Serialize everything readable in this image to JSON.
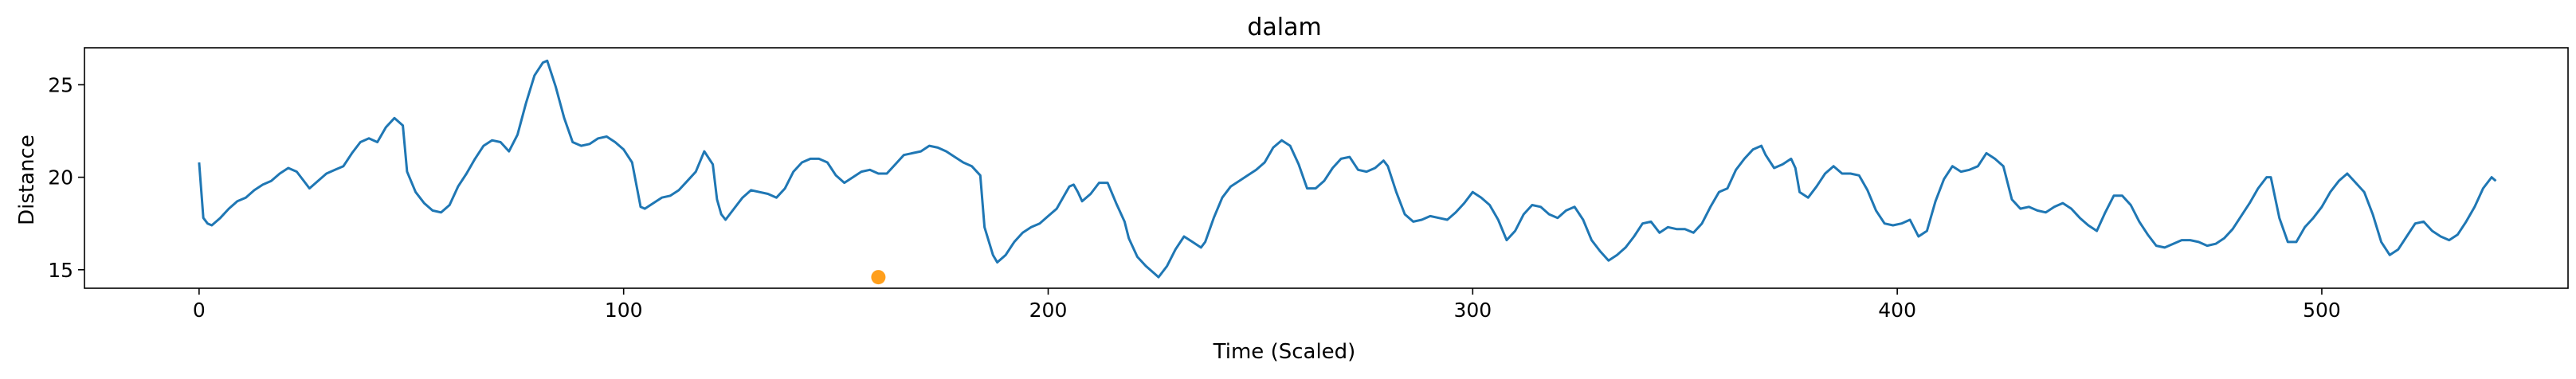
{
  "chart_data": {
    "type": "scatter",
    "title": "dalam",
    "xlabel": "Time (Scaled)",
    "ylabel": "Distance",
    "xlim": [
      -27,
      558
    ],
    "ylim": [
      14.0,
      27.0
    ],
    "xticks": [
      0,
      100,
      200,
      300,
      400,
      500
    ],
    "yticks": [
      15,
      20,
      25
    ],
    "grid": false,
    "colors": {
      "line": "#1f77b4",
      "marker": "#ff9f1c",
      "axes": "#000000"
    },
    "series": [
      {
        "kind": "line",
        "points": [
          [
            0,
            20.8
          ],
          [
            1,
            17.8
          ],
          [
            2,
            17.5
          ],
          [
            3,
            17.4
          ],
          [
            5,
            17.8
          ],
          [
            7,
            18.3
          ],
          [
            9,
            18.7
          ],
          [
            11,
            18.9
          ],
          [
            13,
            19.3
          ],
          [
            15,
            19.6
          ],
          [
            17,
            19.8
          ],
          [
            19,
            20.2
          ],
          [
            21,
            20.5
          ],
          [
            23,
            20.3
          ],
          [
            25,
            19.7
          ],
          [
            26,
            19.4
          ],
          [
            28,
            19.8
          ],
          [
            30,
            20.2
          ],
          [
            32,
            20.4
          ],
          [
            34,
            20.6
          ],
          [
            36,
            21.3
          ],
          [
            38,
            21.9
          ],
          [
            40,
            22.1
          ],
          [
            42,
            21.9
          ],
          [
            44,
            22.7
          ],
          [
            46,
            23.2
          ],
          [
            48,
            22.8
          ],
          [
            49,
            20.3
          ],
          [
            51,
            19.2
          ],
          [
            53,
            18.6
          ],
          [
            55,
            18.2
          ],
          [
            57,
            18.1
          ],
          [
            59,
            18.5
          ],
          [
            61,
            19.5
          ],
          [
            63,
            20.2
          ],
          [
            65,
            21.0
          ],
          [
            67,
            21.7
          ],
          [
            69,
            22.0
          ],
          [
            71,
            21.9
          ],
          [
            73,
            21.4
          ],
          [
            75,
            22.3
          ],
          [
            77,
            24.0
          ],
          [
            79,
            25.5
          ],
          [
            81,
            26.2
          ],
          [
            82,
            26.3
          ],
          [
            83,
            25.6
          ],
          [
            84,
            24.9
          ],
          [
            86,
            23.2
          ],
          [
            88,
            21.9
          ],
          [
            90,
            21.7
          ],
          [
            92,
            21.8
          ],
          [
            94,
            22.1
          ],
          [
            96,
            22.2
          ],
          [
            98,
            21.9
          ],
          [
            100,
            21.5
          ],
          [
            102,
            20.8
          ],
          [
            104,
            18.4
          ],
          [
            105,
            18.3
          ],
          [
            107,
            18.6
          ],
          [
            109,
            18.9
          ],
          [
            111,
            19.0
          ],
          [
            113,
            19.3
          ],
          [
            115,
            19.8
          ],
          [
            117,
            20.3
          ],
          [
            119,
            21.4
          ],
          [
            121,
            20.7
          ],
          [
            122,
            18.8
          ],
          [
            123,
            18.0
          ],
          [
            124,
            17.7
          ],
          [
            126,
            18.3
          ],
          [
            128,
            18.9
          ],
          [
            130,
            19.3
          ],
          [
            132,
            19.2
          ],
          [
            134,
            19.1
          ],
          [
            136,
            18.9
          ],
          [
            138,
            19.4
          ],
          [
            140,
            20.3
          ],
          [
            142,
            20.8
          ],
          [
            144,
            21.0
          ],
          [
            146,
            21.0
          ],
          [
            148,
            20.8
          ],
          [
            150,
            20.1
          ],
          [
            152,
            19.7
          ],
          [
            154,
            20.0
          ],
          [
            156,
            20.3
          ],
          [
            158,
            20.4
          ],
          [
            160,
            20.2
          ],
          [
            162,
            20.2
          ],
          [
            164,
            20.7
          ],
          [
            166,
            21.2
          ],
          [
            168,
            21.3
          ],
          [
            170,
            21.4
          ],
          [
            172,
            21.7
          ],
          [
            174,
            21.6
          ],
          [
            176,
            21.4
          ],
          [
            178,
            21.1
          ],
          [
            180,
            20.8
          ],
          [
            182,
            20.6
          ],
          [
            184,
            20.1
          ],
          [
            185,
            17.3
          ],
          [
            187,
            15.8
          ],
          [
            188,
            15.4
          ],
          [
            190,
            15.8
          ],
          [
            192,
            16.5
          ],
          [
            194,
            17.0
          ],
          [
            196,
            17.3
          ],
          [
            198,
            17.5
          ],
          [
            200,
            17.9
          ],
          [
            202,
            18.3
          ],
          [
            204,
            19.1
          ],
          [
            205,
            19.5
          ],
          [
            206,
            19.6
          ],
          [
            207,
            19.2
          ],
          [
            208,
            18.7
          ],
          [
            210,
            19.1
          ],
          [
            212,
            19.7
          ],
          [
            214,
            19.7
          ],
          [
            216,
            18.6
          ],
          [
            218,
            17.6
          ],
          [
            219,
            16.7
          ],
          [
            221,
            15.7
          ],
          [
            223,
            15.2
          ],
          [
            225,
            14.8
          ],
          [
            226,
            14.6
          ],
          [
            228,
            15.2
          ],
          [
            230,
            16.1
          ],
          [
            232,
            16.8
          ],
          [
            234,
            16.5
          ],
          [
            236,
            16.2
          ],
          [
            237,
            16.5
          ],
          [
            239,
            17.8
          ],
          [
            241,
            18.9
          ],
          [
            243,
            19.5
          ],
          [
            245,
            19.8
          ],
          [
            247,
            20.1
          ],
          [
            249,
            20.4
          ],
          [
            251,
            20.8
          ],
          [
            253,
            21.6
          ],
          [
            255,
            22.0
          ],
          [
            257,
            21.7
          ],
          [
            259,
            20.7
          ],
          [
            261,
            19.4
          ],
          [
            263,
            19.4
          ],
          [
            265,
            19.8
          ],
          [
            267,
            20.5
          ],
          [
            269,
            21.0
          ],
          [
            271,
            21.1
          ],
          [
            273,
            20.4
          ],
          [
            275,
            20.3
          ],
          [
            277,
            20.5
          ],
          [
            279,
            20.9
          ],
          [
            280,
            20.6
          ],
          [
            282,
            19.2
          ],
          [
            284,
            18.0
          ],
          [
            286,
            17.6
          ],
          [
            288,
            17.7
          ],
          [
            290,
            17.9
          ],
          [
            292,
            17.8
          ],
          [
            294,
            17.7
          ],
          [
            296,
            18.1
          ],
          [
            298,
            18.6
          ],
          [
            300,
            19.2
          ],
          [
            302,
            18.9
          ],
          [
            304,
            18.5
          ],
          [
            306,
            17.7
          ],
          [
            308,
            16.6
          ],
          [
            310,
            17.1
          ],
          [
            312,
            18.0
          ],
          [
            314,
            18.5
          ],
          [
            316,
            18.4
          ],
          [
            318,
            18.0
          ],
          [
            320,
            17.8
          ],
          [
            322,
            18.2
          ],
          [
            324,
            18.4
          ],
          [
            326,
            17.7
          ],
          [
            328,
            16.6
          ],
          [
            330,
            16.0
          ],
          [
            332,
            15.5
          ],
          [
            334,
            15.8
          ],
          [
            336,
            16.2
          ],
          [
            338,
            16.8
          ],
          [
            340,
            17.5
          ],
          [
            342,
            17.6
          ],
          [
            344,
            17.0
          ],
          [
            346,
            17.3
          ],
          [
            348,
            17.2
          ],
          [
            350,
            17.2
          ],
          [
            352,
            17.0
          ],
          [
            354,
            17.5
          ],
          [
            356,
            18.4
          ],
          [
            358,
            19.2
          ],
          [
            360,
            19.4
          ],
          [
            362,
            20.4
          ],
          [
            364,
            21.0
          ],
          [
            366,
            21.5
          ],
          [
            368,
            21.7
          ],
          [
            369,
            21.2
          ],
          [
            371,
            20.5
          ],
          [
            373,
            20.7
          ],
          [
            375,
            21.0
          ],
          [
            376,
            20.5
          ],
          [
            377,
            19.2
          ],
          [
            379,
            18.9
          ],
          [
            381,
            19.5
          ],
          [
            383,
            20.2
          ],
          [
            385,
            20.6
          ],
          [
            387,
            20.2
          ],
          [
            389,
            20.2
          ],
          [
            391,
            20.1
          ],
          [
            393,
            19.3
          ],
          [
            395,
            18.2
          ],
          [
            397,
            17.5
          ],
          [
            399,
            17.4
          ],
          [
            401,
            17.5
          ],
          [
            403,
            17.7
          ],
          [
            405,
            16.8
          ],
          [
            407,
            17.1
          ],
          [
            409,
            18.7
          ],
          [
            411,
            19.9
          ],
          [
            413,
            20.6
          ],
          [
            415,
            20.3
          ],
          [
            417,
            20.4
          ],
          [
            419,
            20.6
          ],
          [
            421,
            21.3
          ],
          [
            423,
            21.0
          ],
          [
            425,
            20.6
          ],
          [
            427,
            18.8
          ],
          [
            429,
            18.3
          ],
          [
            431,
            18.4
          ],
          [
            433,
            18.2
          ],
          [
            435,
            18.1
          ],
          [
            437,
            18.4
          ],
          [
            439,
            18.6
          ],
          [
            441,
            18.3
          ],
          [
            443,
            17.8
          ],
          [
            445,
            17.4
          ],
          [
            447,
            17.1
          ],
          [
            449,
            18.1
          ],
          [
            451,
            19.0
          ],
          [
            453,
            19.0
          ],
          [
            455,
            18.5
          ],
          [
            457,
            17.6
          ],
          [
            459,
            16.9
          ],
          [
            461,
            16.3
          ],
          [
            463,
            16.2
          ],
          [
            465,
            16.4
          ],
          [
            467,
            16.6
          ],
          [
            469,
            16.6
          ],
          [
            471,
            16.5
          ],
          [
            473,
            16.3
          ],
          [
            475,
            16.4
          ],
          [
            477,
            16.7
          ],
          [
            479,
            17.2
          ],
          [
            481,
            17.9
          ],
          [
            483,
            18.6
          ],
          [
            485,
            19.4
          ],
          [
            487,
            20.0
          ],
          [
            488,
            20.0
          ],
          [
            490,
            17.8
          ],
          [
            492,
            16.5
          ],
          [
            494,
            16.5
          ],
          [
            496,
            17.3
          ],
          [
            498,
            17.8
          ],
          [
            500,
            18.4
          ],
          [
            502,
            19.2
          ],
          [
            504,
            19.8
          ],
          [
            506,
            20.2
          ],
          [
            508,
            19.7
          ],
          [
            510,
            19.2
          ],
          [
            512,
            18.0
          ],
          [
            514,
            16.5
          ],
          [
            516,
            15.8
          ],
          [
            518,
            16.1
          ],
          [
            520,
            16.8
          ],
          [
            522,
            17.5
          ],
          [
            524,
            17.6
          ],
          [
            526,
            17.1
          ],
          [
            528,
            16.8
          ],
          [
            530,
            16.6
          ],
          [
            532,
            16.9
          ],
          [
            534,
            17.6
          ],
          [
            536,
            18.4
          ],
          [
            538,
            19.4
          ],
          [
            540,
            20.0
          ],
          [
            541,
            19.8
          ]
        ]
      },
      {
        "kind": "point",
        "points": [
          [
            160,
            14.6
          ]
        ]
      }
    ]
  }
}
